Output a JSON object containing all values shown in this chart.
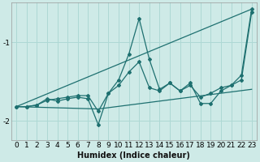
{
  "background_color": "#ceeae7",
  "line_color": "#1e7070",
  "grid_color": "#aed8d4",
  "xlabel": "Humidex (Indice chaleur)",
  "xlim": [
    -0.5,
    23.5
  ],
  "ylim": [
    -2.25,
    -0.5
  ],
  "yticks": [
    -2,
    -1
  ],
  "xtick_labels": [
    "0",
    "1",
    "2",
    "3",
    "4",
    "5",
    "6",
    "7",
    "8",
    "9",
    "10",
    "11",
    "12",
    "13",
    "14",
    "15",
    "16",
    "17",
    "18",
    "19",
    "20",
    "21",
    "22",
    "23"
  ],
  "line_jagged_x": [
    0,
    1,
    2,
    3,
    4,
    5,
    6,
    7,
    8,
    9,
    10,
    11,
    12,
    13,
    14,
    15,
    16,
    17,
    18,
    19,
    20,
    21,
    22,
    23
  ],
  "line_jagged_y": [
    -1.82,
    -1.82,
    -1.8,
    -1.72,
    -1.75,
    -1.72,
    -1.7,
    -1.72,
    -2.05,
    -1.65,
    -1.48,
    -1.15,
    -0.7,
    -1.22,
    -1.6,
    -1.52,
    -1.62,
    -1.52,
    -1.78,
    -1.78,
    -1.62,
    -1.55,
    -1.42,
    -0.58
  ],
  "line_smooth_x": [
    0,
    1,
    2,
    3,
    4,
    5,
    6,
    7,
    8,
    9,
    10,
    11,
    12,
    13,
    14,
    15,
    16,
    17,
    18,
    19,
    20,
    21,
    22,
    23
  ],
  "line_smooth_y": [
    -1.82,
    -1.82,
    -1.8,
    -1.74,
    -1.72,
    -1.7,
    -1.68,
    -1.68,
    -1.88,
    -1.65,
    -1.55,
    -1.38,
    -1.25,
    -1.58,
    -1.62,
    -1.52,
    -1.62,
    -1.55,
    -1.7,
    -1.65,
    -1.58,
    -1.55,
    -1.48,
    -0.62
  ],
  "line_upper_trend_x": [
    0,
    23
  ],
  "line_upper_trend_y": [
    -1.82,
    -0.58
  ],
  "line_lower_trend_x": [
    0,
    8,
    23
  ],
  "line_lower_trend_y": [
    -1.82,
    -1.85,
    -1.6
  ]
}
